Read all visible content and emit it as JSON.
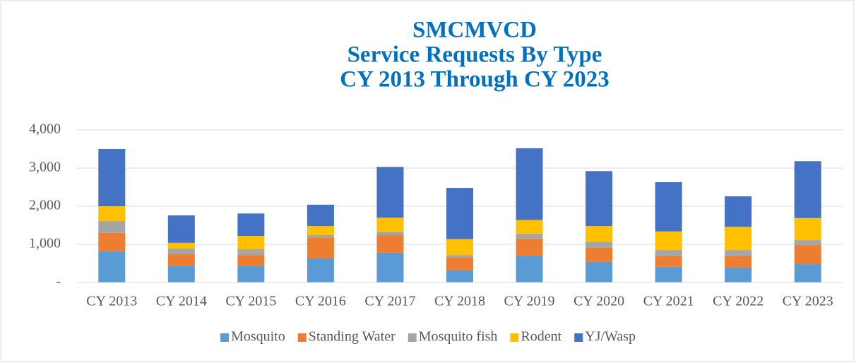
{
  "chart_data": {
    "type": "stacked_bar",
    "title": [
      "SMCMVCD",
      "Service Requests By Type",
      "CY 2013 Through CY 2023"
    ],
    "categories": [
      "CY 2013",
      "CY 2014",
      "CY 2015",
      "CY 2016",
      "CY 2017",
      "CY 2018",
      "CY 2019",
      "CY 2020",
      "CY 2021",
      "CY 2022",
      "CY 2023"
    ],
    "series": [
      {
        "name": "Mosquito",
        "color": "#5b9bd5",
        "values": [
          820,
          440,
          440,
          630,
          780,
          320,
          700,
          540,
          410,
          390,
          480
        ]
      },
      {
        "name": "Standing Water",
        "color": "#ed7d31",
        "values": [
          480,
          300,
          280,
          550,
          460,
          340,
          450,
          380,
          290,
          310,
          500
        ]
      },
      {
        "name": "Mosquito fish",
        "color": "#a5a5a5",
        "values": [
          310,
          150,
          150,
          60,
          90,
          60,
          130,
          150,
          150,
          150,
          130
        ]
      },
      {
        "name": "Rodent",
        "color": "#ffc000",
        "values": [
          390,
          150,
          350,
          240,
          370,
          420,
          360,
          410,
          490,
          610,
          580
        ]
      },
      {
        "name": "YJ/Wasp",
        "color": "#4472c4",
        "values": [
          1500,
          720,
          590,
          560,
          1330,
          1340,
          1880,
          1440,
          1290,
          800,
          1490
        ]
      }
    ],
    "ylim": [
      0,
      4000
    ],
    "yticks": [
      {
        "value": 0,
        "label": "-"
      },
      {
        "value": 1000,
        "label": "1,000"
      },
      {
        "value": 2000,
        "label": "2,000"
      },
      {
        "value": 3000,
        "label": "3,000"
      },
      {
        "value": 4000,
        "label": "4,000"
      }
    ],
    "grid": true,
    "legend": "bottom"
  }
}
